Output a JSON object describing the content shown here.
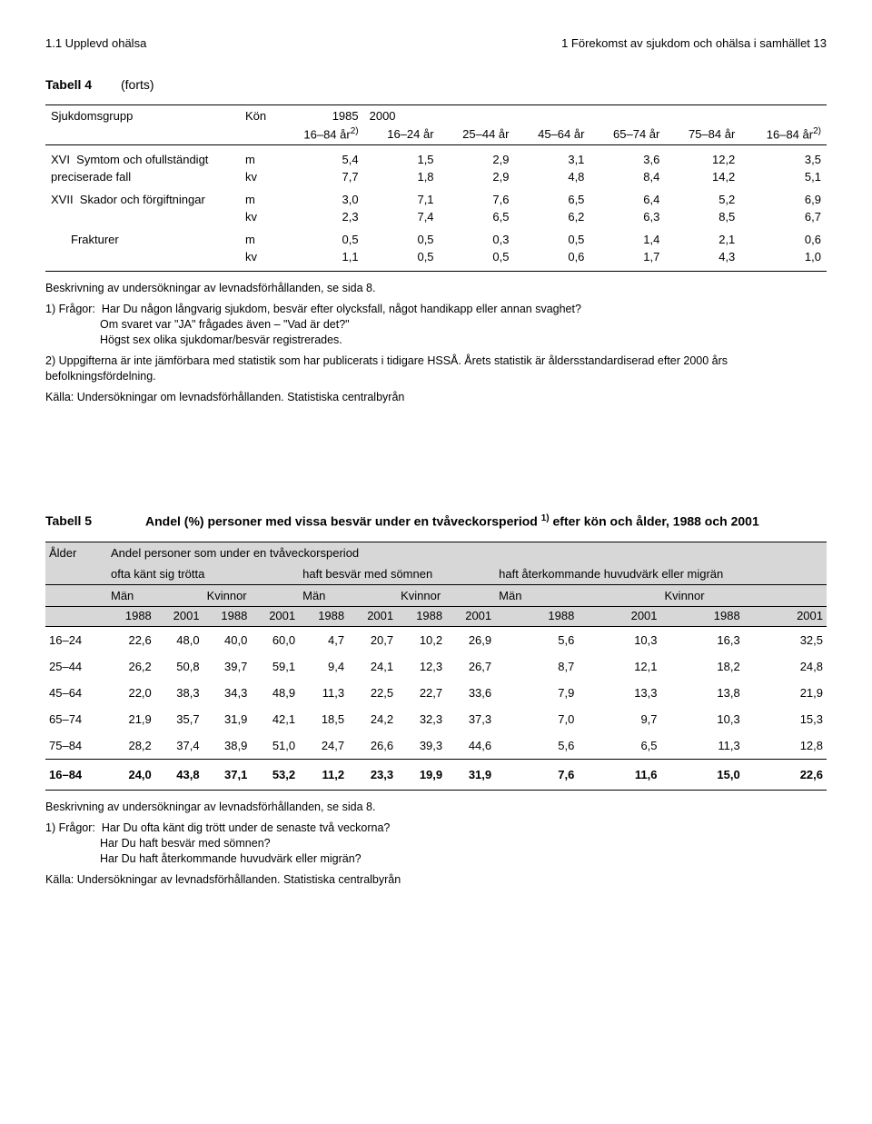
{
  "header": {
    "left": "1.1 Upplevd ohälsa",
    "right": "1 Förekomst av sjukdom och ohälsa i samhället   13"
  },
  "tabell4": {
    "label": "Tabell 4",
    "forts": "(forts)",
    "cols": {
      "grupp": "Sjukdomsgrupp",
      "kon": "Kön",
      "y1985": "1985",
      "y2000": "2000",
      "a16_84_2": "16–84 år",
      "a16_24": "16–24 år",
      "a25_44": "25–44 år",
      "a45_64": "45–64 år",
      "a65_74": "65–74 år",
      "a75_84": "75–84 år",
      "a16_84_2b": "16–84 år",
      "sup": "2)"
    },
    "rows": [
      {
        "roman": "XVI",
        "name": "Symtom och ofullständigt",
        "kon": "m",
        "v": [
          "5,4",
          "1,5",
          "2,9",
          "3,1",
          "3,6",
          "12,2",
          "3,5"
        ]
      },
      {
        "roman": "",
        "name": "preciserade fall",
        "kon": "kv",
        "v": [
          "7,7",
          "1,8",
          "2,9",
          "4,8",
          "8,4",
          "14,2",
          "5,1"
        ]
      },
      {
        "roman": "XVII",
        "name": "Skador och förgiftningar",
        "kon": "m",
        "v": [
          "3,0",
          "7,1",
          "7,6",
          "6,5",
          "6,4",
          "5,2",
          "6,9"
        ]
      },
      {
        "roman": "",
        "name": "",
        "kon": "kv",
        "v": [
          "2,3",
          "7,4",
          "6,5",
          "6,2",
          "6,3",
          "8,5",
          "6,7"
        ]
      },
      {
        "roman": "",
        "name": "Frakturer",
        "sub": true,
        "kon": "m",
        "v": [
          "0,5",
          "0,5",
          "0,3",
          "0,5",
          "1,4",
          "2,1",
          "0,6"
        ]
      },
      {
        "roman": "",
        "name": "",
        "sub": true,
        "kon": "kv",
        "v": [
          "1,1",
          "0,5",
          "0,5",
          "0,6",
          "1,7",
          "4,3",
          "1,0"
        ]
      }
    ],
    "notes": {
      "beskr": "Beskrivning av undersökningar av levnadsförhållanden, se sida 8.",
      "fragor_label": "1) Frågor:",
      "fragor_l1": "Har Du någon långvarig sjukdom, besvär efter olycksfall, något handikapp eller annan svaghet?",
      "fragor_l2": "Om svaret var \"JA\" frågades även – \"Vad är det?\"",
      "fragor_l3": "Högst sex olika sjukdomar/besvär registrerades.",
      "n2": "2) Uppgifterna är inte jämförbara med statistik som har publicerats i tidigare HSSÅ. Årets statistik är åldersstandardiserad efter 2000 års befolkningsfördelning.",
      "kalla": "Källa: Undersökningar om levnadsförhållanden. Statistiska centralbyrån"
    }
  },
  "tabell5": {
    "label": "Tabell 5",
    "title_a": "Andel (%) personer med vissa besvär under en tvåveckorsperiod ",
    "title_sup": "1)",
    "title_b": " efter kön och ålder, 1988 och 2001",
    "head": {
      "alder": "Ålder",
      "sub": "Andel personer som under en tvåveckorsperiod",
      "g1": "ofta känt sig trötta",
      "g2": "haft besvär med sömnen",
      "g3": "haft återkommande huvudvärk eller migrän",
      "man": "Män",
      "kvinnor": "Kvinnor",
      "y1988": "1988",
      "y2001": "2001"
    },
    "rows": [
      {
        "a": "16–24",
        "v": [
          "22,6",
          "48,0",
          "40,0",
          "60,0",
          "4,7",
          "20,7",
          "10,2",
          "26,9",
          "5,6",
          "10,3",
          "16,3",
          "32,5"
        ]
      },
      {
        "a": "25–44",
        "v": [
          "26,2",
          "50,8",
          "39,7",
          "59,1",
          "9,4",
          "24,1",
          "12,3",
          "26,7",
          "8,7",
          "12,1",
          "18,2",
          "24,8"
        ]
      },
      {
        "a": "45–64",
        "v": [
          "22,0",
          "38,3",
          "34,3",
          "48,9",
          "11,3",
          "22,5",
          "22,7",
          "33,6",
          "7,9",
          "13,3",
          "13,8",
          "21,9"
        ]
      },
      {
        "a": "65–74",
        "v": [
          "21,9",
          "35,7",
          "31,9",
          "42,1",
          "18,5",
          "24,2",
          "32,3",
          "37,3",
          "7,0",
          "9,7",
          "10,3",
          "15,3"
        ]
      },
      {
        "a": "75–84",
        "v": [
          "28,2",
          "37,4",
          "38,9",
          "51,0",
          "24,7",
          "26,6",
          "39,3",
          "44,6",
          "5,6",
          "6,5",
          "11,3",
          "12,8"
        ]
      }
    ],
    "total": {
      "a": "16–84",
      "v": [
        "24,0",
        "43,8",
        "37,1",
        "53,2",
        "11,2",
        "23,3",
        "19,9",
        "31,9",
        "7,6",
        "11,6",
        "15,0",
        "22,6"
      ]
    },
    "notes": {
      "beskr": "Beskrivning av undersökningar av levnadsförhållanden, se sida 8.",
      "fragor_label": "1) Frågor:",
      "q1": "Har Du ofta känt dig trött under de senaste två veckorna?",
      "q2": "Har Du haft besvär med sömnen?",
      "q3": "Har Du haft återkommande huvudvärk eller migrän?",
      "kalla": "Källa: Undersökningar av levnadsförhållanden. Statistiska centralbyrån"
    }
  }
}
